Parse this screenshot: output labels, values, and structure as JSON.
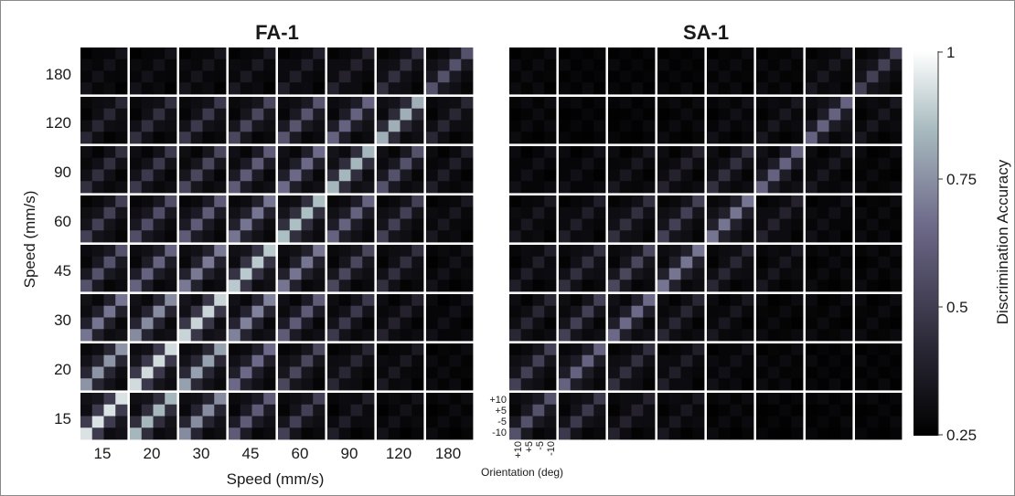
{
  "chart_data": [
    {
      "type": "heatmap",
      "title": "FA-1",
      "xlabel": "Speed (mm/s)",
      "ylabel": "Speed (mm/s)",
      "x_ticks": [
        "15",
        "20",
        "30",
        "45",
        "60",
        "90",
        "120",
        "180"
      ],
      "y_ticks": [
        "180",
        "120",
        "90",
        "60",
        "45",
        "30",
        "20",
        "15"
      ],
      "cell_axis_ticks": [
        "+10",
        "+5",
        "-5",
        "-10"
      ],
      "diagonal_accuracy": {
        "rows_top_to_bottom": [
          "180",
          "120",
          "90",
          "60",
          "45",
          "30",
          "20",
          "15"
        ],
        "cols_left_to_right": [
          "15",
          "20",
          "30",
          "45",
          "60",
          "90",
          "120",
          "180"
        ],
        "values": [
          [
            0.33,
            0.33,
            0.34,
            0.36,
            0.38,
            0.4,
            0.45,
            0.55
          ],
          [
            0.42,
            0.45,
            0.48,
            0.52,
            0.56,
            0.6,
            0.78,
            0.42
          ],
          [
            0.45,
            0.48,
            0.52,
            0.58,
            0.62,
            0.8,
            0.55,
            0.38
          ],
          [
            0.5,
            0.54,
            0.58,
            0.65,
            0.82,
            0.6,
            0.5,
            0.35
          ],
          [
            0.55,
            0.6,
            0.66,
            0.85,
            0.65,
            0.52,
            0.45,
            0.33
          ],
          [
            0.65,
            0.7,
            0.88,
            0.68,
            0.58,
            0.48,
            0.4,
            0.32
          ],
          [
            0.72,
            0.9,
            0.75,
            0.62,
            0.52,
            0.42,
            0.36,
            0.3
          ],
          [
            0.92,
            0.8,
            0.7,
            0.58,
            0.5,
            0.38,
            0.33,
            0.3
          ]
        ]
      }
    },
    {
      "type": "heatmap",
      "title": "SA-1",
      "xlabel": "Orientation (deg)",
      "x_ticks": [
        "+10",
        "+5",
        "-5",
        "-10"
      ],
      "y_ticks": [
        "+10",
        "+5",
        "-5",
        "-10"
      ],
      "diagonal_accuracy": {
        "rows_top_to_bottom": [
          "180",
          "120",
          "90",
          "60",
          "45",
          "30",
          "20",
          "15"
        ],
        "cols_left_to_right": [
          "15",
          "20",
          "30",
          "45",
          "60",
          "90",
          "120",
          "180"
        ],
        "values": [
          [
            0.3,
            0.28,
            0.28,
            0.28,
            0.3,
            0.3,
            0.35,
            0.5
          ],
          [
            0.3,
            0.28,
            0.28,
            0.3,
            0.32,
            0.35,
            0.6,
            0.35
          ],
          [
            0.32,
            0.32,
            0.35,
            0.4,
            0.45,
            0.6,
            0.35,
            0.3
          ],
          [
            0.35,
            0.38,
            0.45,
            0.5,
            0.65,
            0.4,
            0.32,
            0.3
          ],
          [
            0.38,
            0.45,
            0.52,
            0.65,
            0.42,
            0.35,
            0.3,
            0.3
          ],
          [
            0.42,
            0.5,
            0.62,
            0.42,
            0.35,
            0.3,
            0.3,
            0.3
          ],
          [
            0.5,
            0.6,
            0.45,
            0.38,
            0.32,
            0.3,
            0.28,
            0.28
          ],
          [
            0.55,
            0.48,
            0.4,
            0.35,
            0.3,
            0.28,
            0.28,
            0.28
          ]
        ]
      }
    },
    {
      "type": "colorbar",
      "label": "Discrimination Accuracy",
      "ticks": [
        "1",
        "0.75",
        "0.5",
        "0.25"
      ],
      "tick_values": [
        1,
        0.75,
        0.5,
        0.25
      ],
      "range": [
        0.25,
        1
      ],
      "colormap": [
        "#000000",
        "#2e2b3a",
        "#6e6a8a",
        "#a9bcc0",
        "#ffffff"
      ]
    }
  ]
}
